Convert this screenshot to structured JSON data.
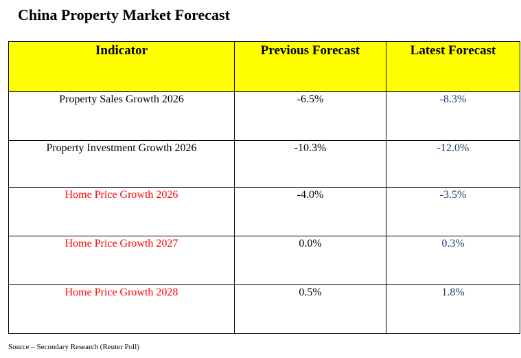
{
  "title": "China Property Market Forecast",
  "table": {
    "headers": [
      "Indicator",
      "Previous Forecast",
      "Latest Forecast"
    ],
    "rows": [
      {
        "indicator": "Property Sales Growth 2026",
        "previous": "-6.5%",
        "latest": "-8.3%",
        "indicator_color": "#000000"
      },
      {
        "indicator": "Property Investment Growth 2026",
        "previous": "-10.3%",
        "latest": "-12.0%",
        "indicator_color": "#000000"
      },
      {
        "indicator": "Home Price Growth 2026",
        "previous": "-4.0%",
        "latest": "-3.5%",
        "indicator_color": "#ff0000"
      },
      {
        "indicator": "Home Price Growth 2027",
        "previous": "0.0%",
        "latest": "0.3%",
        "indicator_color": "#ff0000"
      },
      {
        "indicator": "Home Price Growth 2028",
        "previous": "0.5%",
        "latest": "1.8%",
        "indicator_color": "#ff0000"
      }
    ]
  },
  "source": "Source – Secondary Research (Reuter Poll)",
  "colors": {
    "header_bg": "#ffff00",
    "latest_text": "#1f3a6e",
    "highlight_label": "#ff0000"
  }
}
